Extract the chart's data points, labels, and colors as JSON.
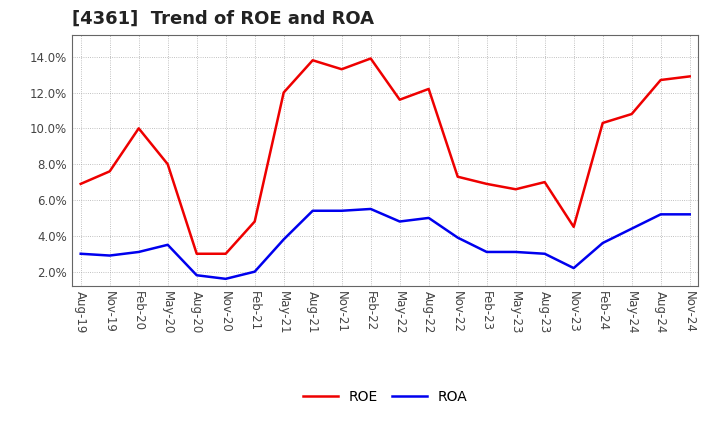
{
  "title": "[4361]  Trend of ROE and ROA",
  "x_labels": [
    "Aug-19",
    "Nov-19",
    "Feb-20",
    "May-20",
    "Aug-20",
    "Nov-20",
    "Feb-21",
    "May-21",
    "Aug-21",
    "Nov-21",
    "Feb-22",
    "May-22",
    "Aug-22",
    "Nov-22",
    "Feb-23",
    "May-23",
    "Aug-23",
    "Nov-23",
    "Feb-24",
    "May-24",
    "Aug-24",
    "Nov-24"
  ],
  "ROE": [
    6.9,
    7.6,
    10.0,
    8.0,
    3.0,
    3.0,
    4.8,
    12.0,
    13.8,
    13.3,
    13.9,
    11.6,
    12.2,
    7.3,
    6.9,
    6.6,
    7.0,
    4.5,
    10.3,
    10.8,
    12.7,
    12.9
  ],
  "ROA": [
    3.0,
    2.9,
    3.1,
    3.5,
    1.8,
    1.6,
    2.0,
    3.8,
    5.4,
    5.4,
    5.5,
    4.8,
    5.0,
    3.9,
    3.1,
    3.1,
    3.0,
    2.2,
    3.6,
    4.4,
    5.2,
    5.2
  ],
  "roe_color": "#ee0000",
  "roa_color": "#0000ee",
  "line_width": 1.8,
  "ylim": [
    1.2,
    15.2
  ],
  "yticks": [
    2.0,
    4.0,
    6.0,
    8.0,
    10.0,
    12.0,
    14.0
  ],
  "background_color": "#ffffff",
  "grid_color": "#999999",
  "title_fontsize": 13,
  "legend_fontsize": 10,
  "tick_fontsize": 8.5
}
